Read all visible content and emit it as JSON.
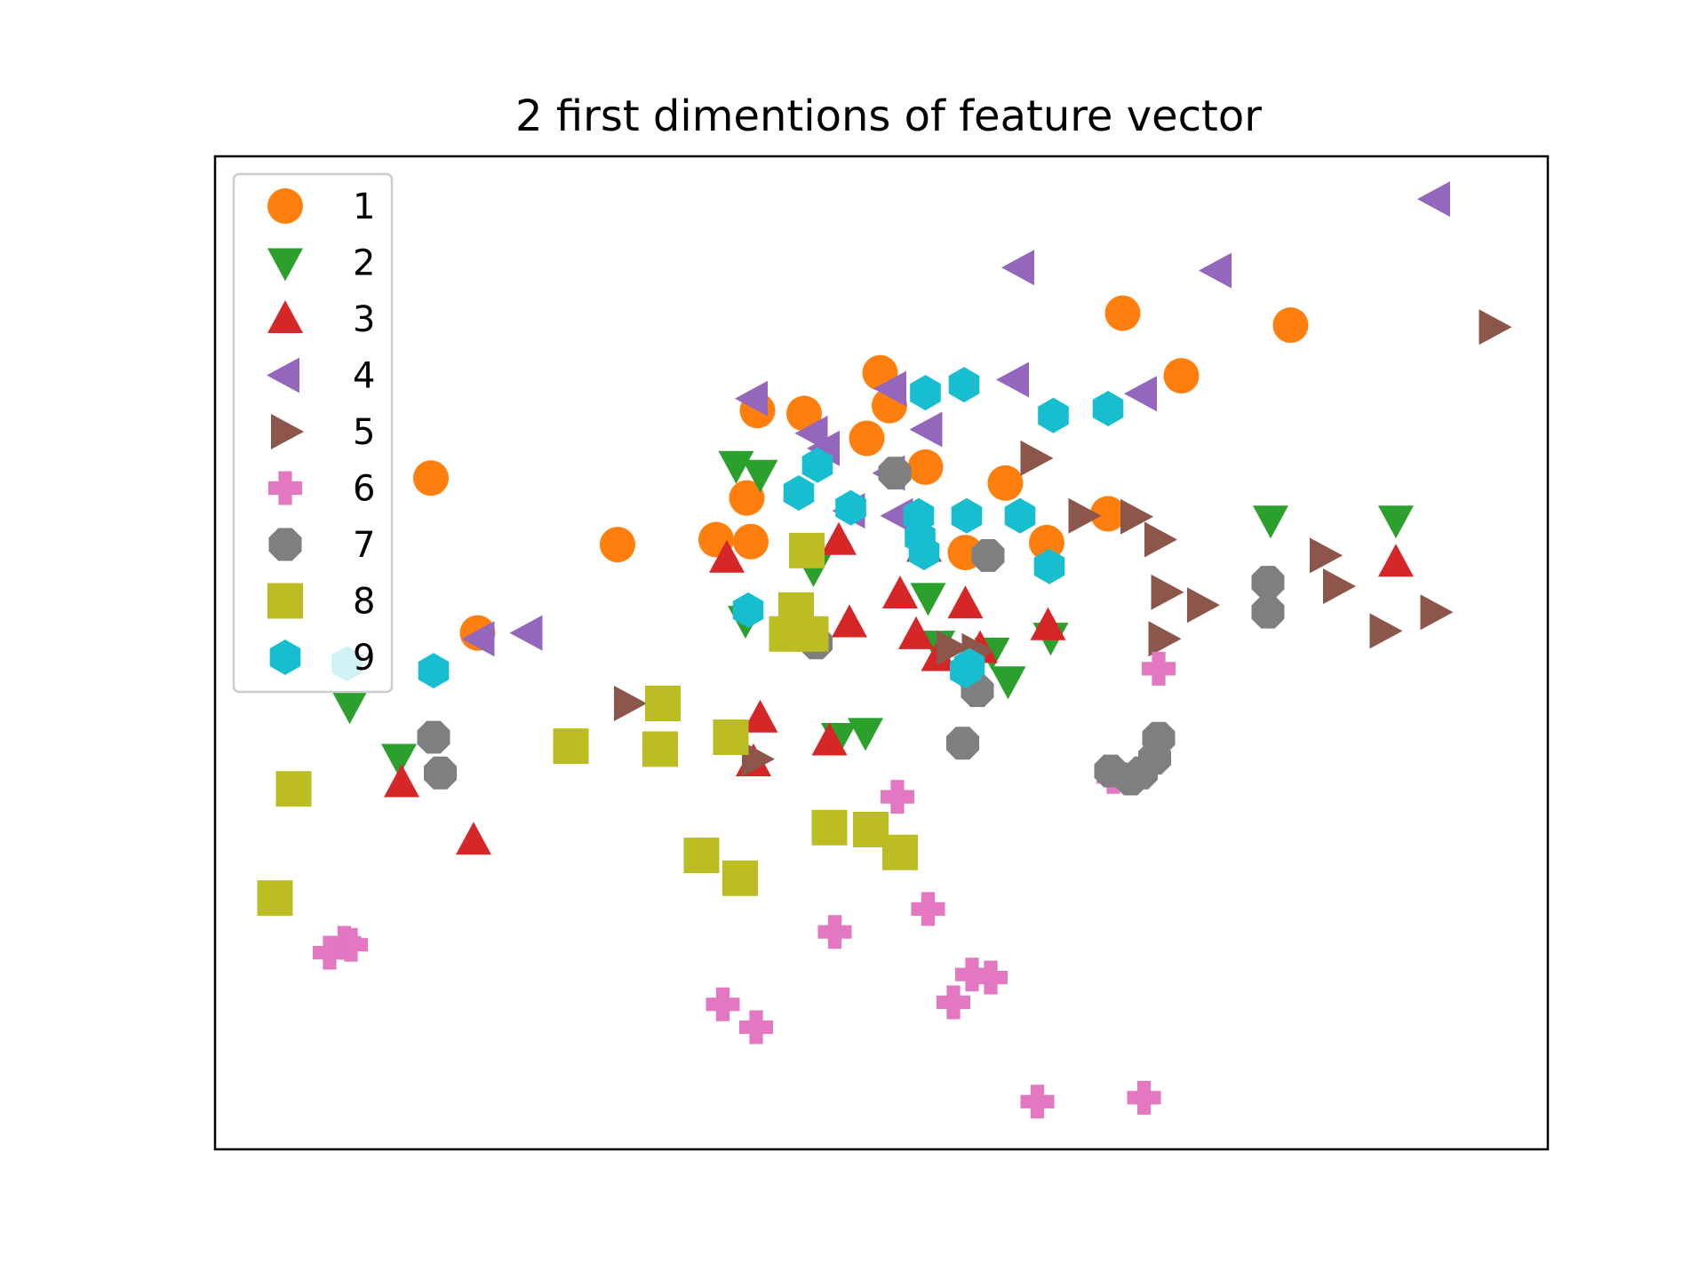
{
  "chart_data": {
    "type": "scatter",
    "title": "2 first dimentions of feature vector",
    "xlabel": "",
    "ylabel": "",
    "xlim": [
      0,
      100
    ],
    "ylim": [
      0,
      100
    ],
    "axes_ticks_visible": false,
    "grid": false,
    "legend_position": "upper-left",
    "series": [
      {
        "name": "1",
        "marker": "circle",
        "color": "#ff7f0e",
        "points": [
          [
            68.1,
            84.2
          ],
          [
            72.5,
            77.9
          ],
          [
            80.7,
            83.0
          ],
          [
            30.2,
            60.9
          ],
          [
            16.2,
            67.6
          ],
          [
            19.7,
            52.0
          ],
          [
            37.6,
            61.4
          ],
          [
            39.9,
            65.6
          ],
          [
            48.9,
            71.6
          ],
          [
            53.3,
            68.7
          ],
          [
            50.6,
            74.9
          ],
          [
            59.3,
            67.1
          ],
          [
            49.9,
            78.2
          ],
          [
            44.2,
            74.1
          ],
          [
            40.7,
            74.4
          ],
          [
            40.2,
            61.2
          ],
          [
            62.4,
            61.1
          ],
          [
            56.3,
            60.1
          ],
          [
            67.0,
            64.0
          ]
        ]
      },
      {
        "name": "2",
        "marker": "triangle_down",
        "color": "#2ca02c",
        "points": [
          [
            39.1,
            68.9
          ],
          [
            40.9,
            68.0
          ],
          [
            44.9,
            58.5
          ],
          [
            53.5,
            55.6
          ],
          [
            58.3,
            50.1
          ],
          [
            62.7,
            51.6
          ],
          [
            59.5,
            47.2
          ],
          [
            54.2,
            50.8
          ],
          [
            39.8,
            53.3
          ],
          [
            46.8,
            41.5
          ],
          [
            48.8,
            42.0
          ],
          [
            10.1,
            44.7
          ],
          [
            13.8,
            39.4
          ],
          [
            79.2,
            63.4
          ],
          [
            88.6,
            63.4
          ]
        ]
      },
      {
        "name": "3",
        "marker": "triangle_up",
        "color": "#d62728",
        "points": [
          [
            46.8,
            61.3
          ],
          [
            38.4,
            59.5
          ],
          [
            51.4,
            55.9
          ],
          [
            56.3,
            54.9
          ],
          [
            47.6,
            53.0
          ],
          [
            52.6,
            51.8
          ],
          [
            62.5,
            52.7
          ],
          [
            54.3,
            49.6
          ],
          [
            57.4,
            50.4
          ],
          [
            40.9,
            43.4
          ],
          [
            40.4,
            39.0
          ],
          [
            46.1,
            41.1
          ],
          [
            14.0,
            36.9
          ],
          [
            19.4,
            31.1
          ],
          [
            88.6,
            59.1
          ],
          [
            53.2,
            60.6
          ]
        ]
      },
      {
        "name": "4",
        "marker": "triangle_left",
        "color": "#9467bd",
        "points": [
          [
            91.6,
            95.7
          ],
          [
            60.4,
            88.8
          ],
          [
            75.2,
            88.5
          ],
          [
            60.0,
            77.5
          ],
          [
            69.6,
            76.1
          ],
          [
            40.4,
            75.6
          ],
          [
            50.8,
            76.6
          ],
          [
            53.5,
            72.5
          ],
          [
            44.9,
            72.1
          ],
          [
            45.8,
            70.6
          ],
          [
            50.7,
            68.1
          ],
          [
            47.7,
            64.3
          ],
          [
            51.3,
            63.8
          ],
          [
            19.9,
            51.4
          ],
          [
            23.5,
            52.0
          ]
        ]
      },
      {
        "name": "5",
        "marker": "triangle_right",
        "color": "#8c564b",
        "points": [
          [
            95.9,
            82.8
          ],
          [
            61.5,
            69.6
          ],
          [
            65.1,
            63.8
          ],
          [
            69.0,
            63.7
          ],
          [
            70.8,
            61.4
          ],
          [
            83.2,
            59.8
          ],
          [
            84.2,
            56.7
          ],
          [
            71.3,
            56.1
          ],
          [
            74.0,
            54.8
          ],
          [
            71.1,
            51.4
          ],
          [
            87.7,
            52.2
          ],
          [
            91.5,
            54.1
          ],
          [
            55.2,
            50.5
          ],
          [
            57.1,
            50.2
          ],
          [
            31.0,
            44.9
          ],
          [
            40.6,
            39.3
          ]
        ]
      },
      {
        "name": "6",
        "marker": "plus",
        "color": "#e377c2",
        "points": [
          [
            56.4,
            48.3
          ],
          [
            70.8,
            48.4
          ],
          [
            67.4,
            37.5
          ],
          [
            51.2,
            35.5
          ],
          [
            53.5,
            24.2
          ],
          [
            46.5,
            21.9
          ],
          [
            56.8,
            17.6
          ],
          [
            58.2,
            17.3
          ],
          [
            55.4,
            14.8
          ],
          [
            38.1,
            14.6
          ],
          [
            40.6,
            12.3
          ],
          [
            8.6,
            19.8
          ],
          [
            9.7,
            20.8
          ],
          [
            10.2,
            20.6
          ],
          [
            61.7,
            4.8
          ],
          [
            69.7,
            5.2
          ]
        ]
      },
      {
        "name": "7",
        "marker": "octagon",
        "color": "#7f7f7f",
        "points": [
          [
            51.0,
            68.1
          ],
          [
            58.0,
            59.8
          ],
          [
            79.0,
            57.1
          ],
          [
            79.0,
            54.1
          ],
          [
            45.1,
            51.0
          ],
          [
            57.2,
            46.2
          ],
          [
            56.1,
            40.9
          ],
          [
            70.8,
            41.4
          ],
          [
            70.5,
            39.4
          ],
          [
            69.5,
            37.9
          ],
          [
            68.7,
            37.3
          ],
          [
            67.2,
            38.1
          ],
          [
            16.4,
            41.5
          ],
          [
            16.9,
            37.9
          ]
        ]
      },
      {
        "name": "8",
        "marker": "square",
        "color": "#bcbd22",
        "points": [
          [
            44.4,
            60.3
          ],
          [
            43.6,
            54.3
          ],
          [
            42.9,
            51.9
          ],
          [
            44.7,
            51.9
          ],
          [
            33.6,
            44.9
          ],
          [
            26.7,
            40.6
          ],
          [
            33.4,
            40.3
          ],
          [
            38.7,
            41.5
          ],
          [
            5.9,
            36.3
          ],
          [
            46.1,
            32.4
          ],
          [
            49.2,
            32.2
          ],
          [
            51.4,
            29.9
          ],
          [
            36.5,
            29.6
          ],
          [
            39.4,
            27.3
          ],
          [
            4.5,
            25.3
          ]
        ]
      },
      {
        "name": "9",
        "marker": "hexagon",
        "color": "#17becf",
        "points": [
          [
            62.9,
            73.9
          ],
          [
            53.3,
            76.2
          ],
          [
            56.2,
            77.0
          ],
          [
            45.2,
            68.9
          ],
          [
            43.8,
            66.1
          ],
          [
            47.7,
            64.6
          ],
          [
            52.8,
            63.8
          ],
          [
            56.4,
            63.8
          ],
          [
            60.4,
            63.8
          ],
          [
            52.9,
            61.6
          ],
          [
            53.2,
            60.1
          ],
          [
            62.6,
            58.7
          ],
          [
            40.0,
            54.3
          ],
          [
            56.3,
            48.2
          ],
          [
            56.6,
            48.7
          ],
          [
            9.9,
            48.9
          ],
          [
            16.4,
            48.2
          ],
          [
            67.0,
            74.6
          ]
        ]
      }
    ]
  }
}
